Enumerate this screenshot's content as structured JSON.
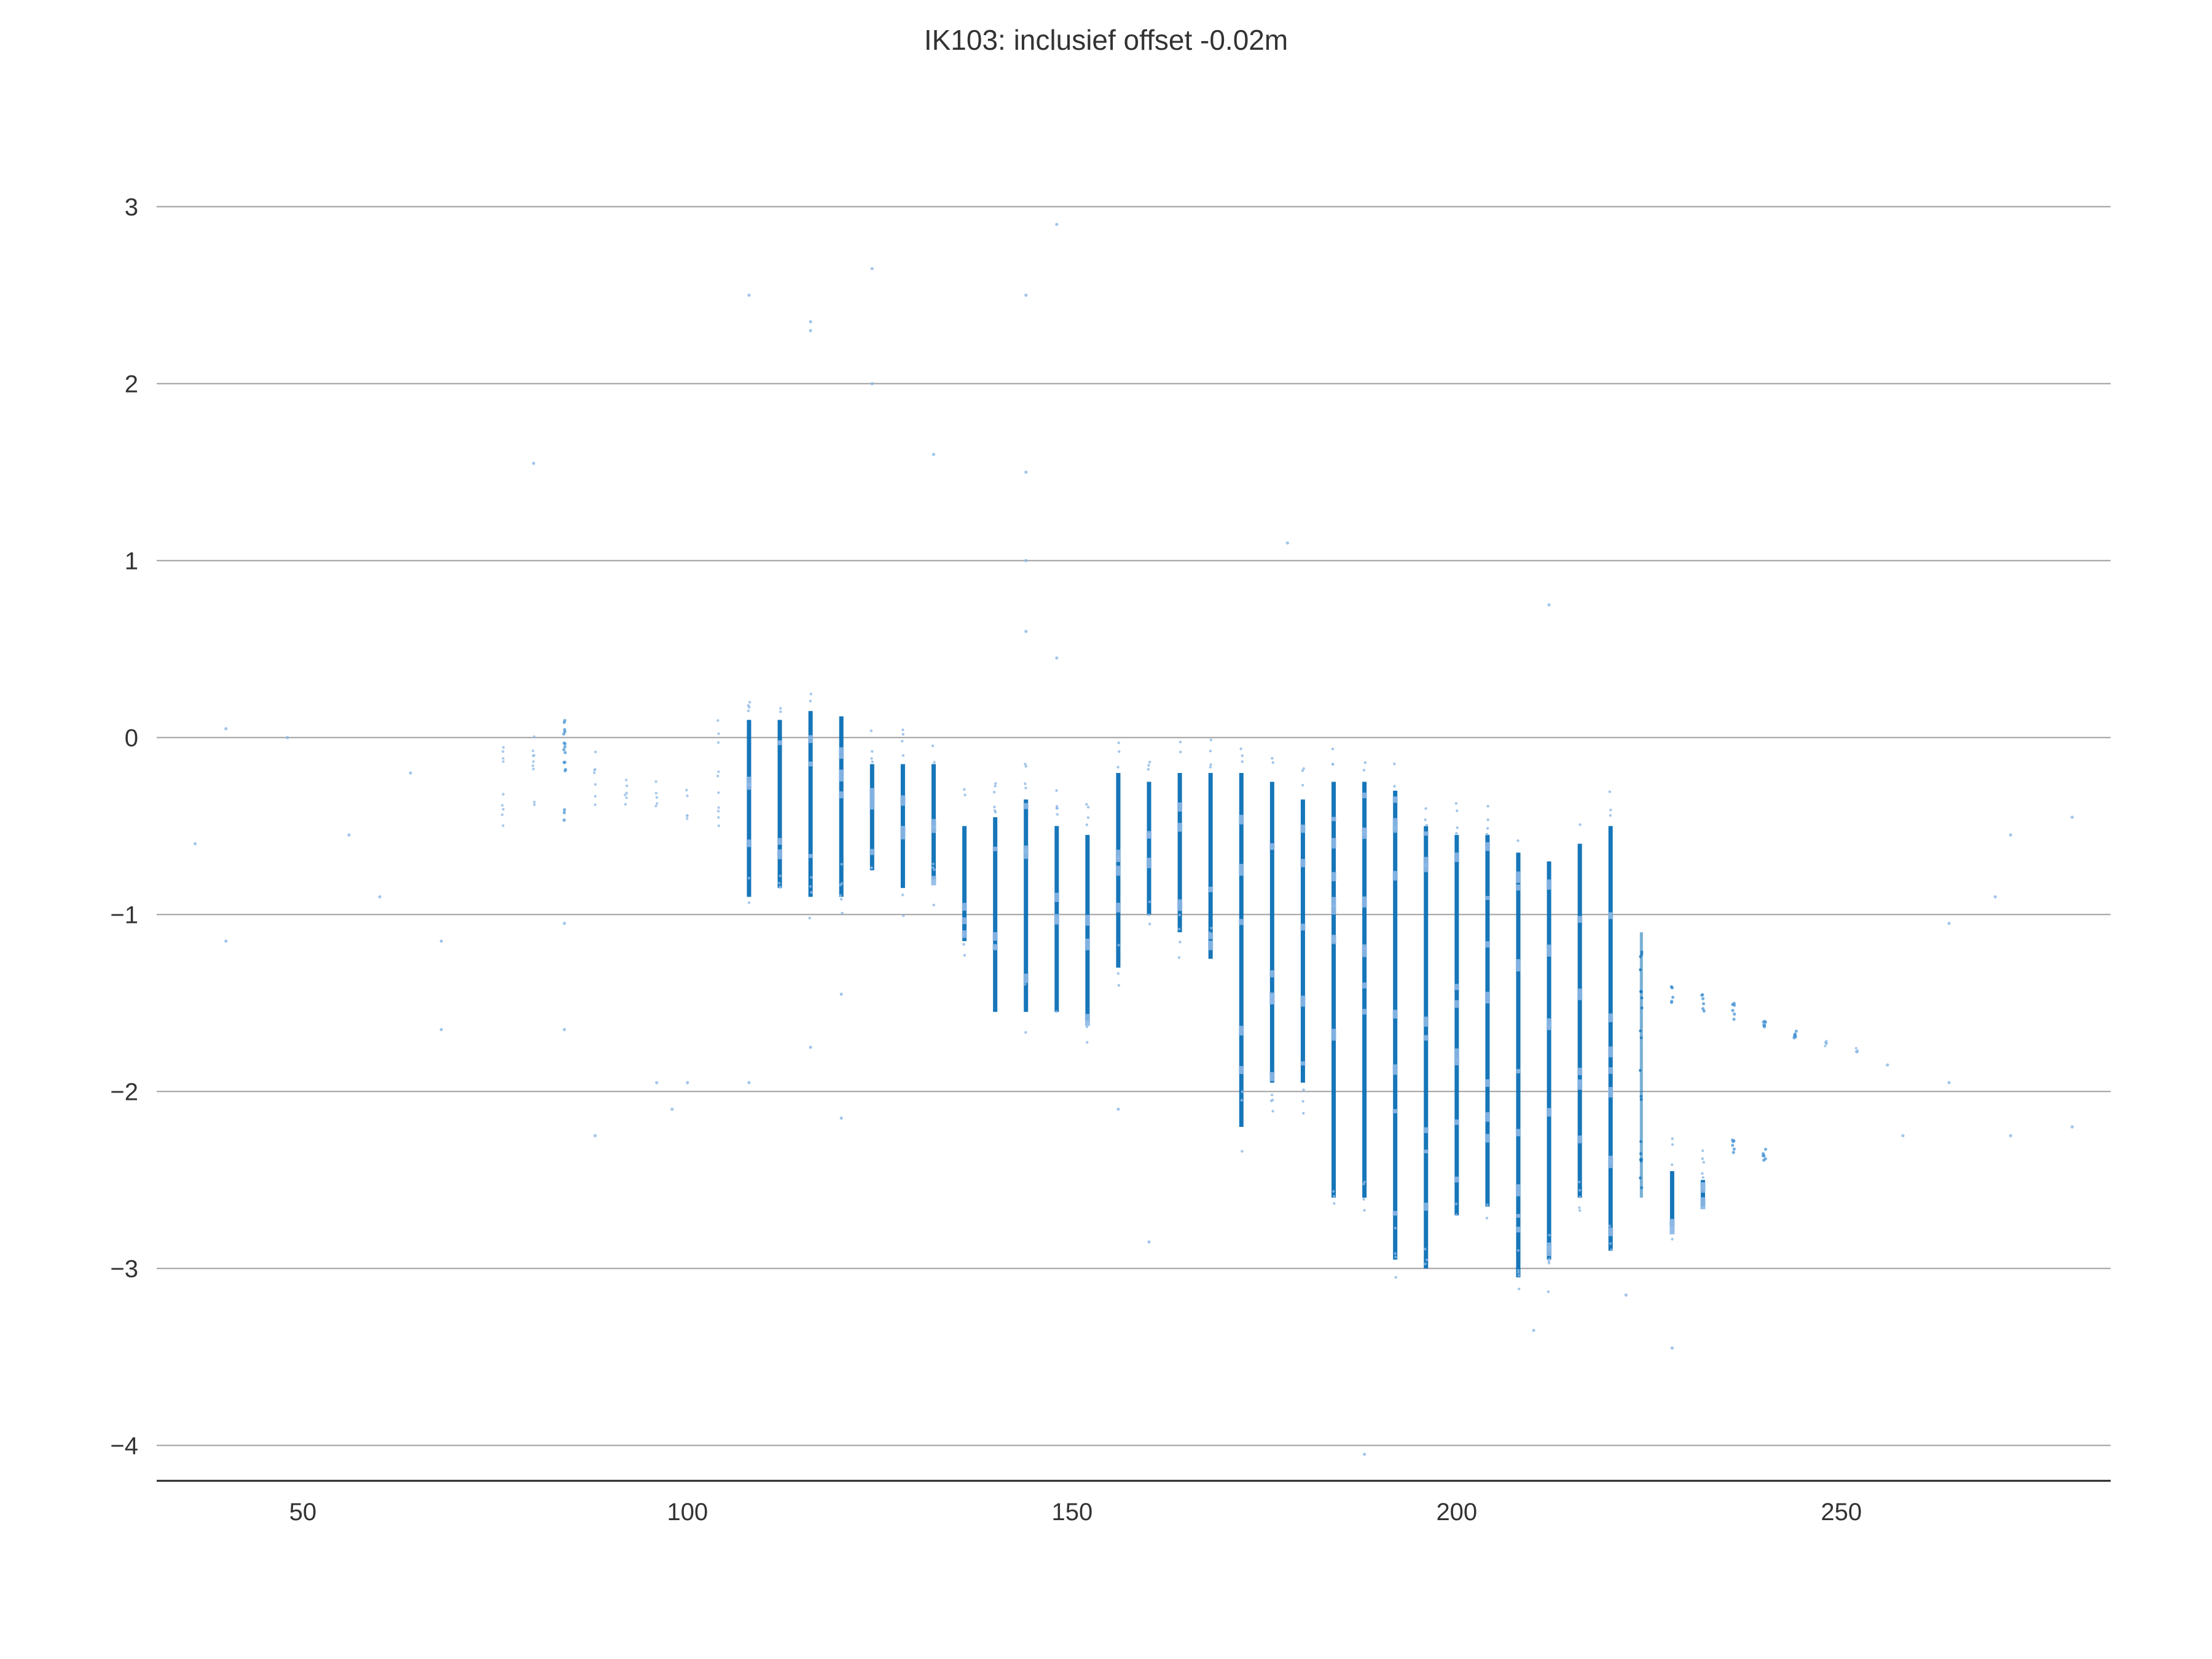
{
  "chart_data": {
    "type": "scatter",
    "title": "IK103: inclusief offset -0.02m",
    "xlabel": "",
    "ylabel": "",
    "xlim": [
      31,
      285
    ],
    "ylim": [
      -4.2,
      3.3
    ],
    "x_ticks": [
      50,
      100,
      150,
      200,
      250
    ],
    "y_ticks": [
      3,
      2,
      1,
      0,
      -1,
      -2,
      -3,
      -4
    ],
    "x_tick_labels": [
      "50",
      "100",
      "150",
      "200",
      "250"
    ],
    "y_tick_labels": [
      "3",
      "2",
      "1",
      "0",
      "−1",
      "−2",
      "−3",
      "−4"
    ],
    "grid": "horizontal",
    "point_color": "#1f77b4",
    "dense_color": "#0a6fb5",
    "light_color": "#8cb8e6",
    "columns": [
      {
        "x": 76,
        "ymin": -0.5,
        "ymax": 0.05,
        "density": "sparse"
      },
      {
        "x": 80,
        "ymin": -0.45,
        "ymax": 0.1,
        "density": "sparse"
      },
      {
        "x": 84,
        "ymin": -0.5,
        "ymax": 0.1,
        "density": "light"
      },
      {
        "x": 88,
        "ymin": -0.4,
        "ymax": 0.05,
        "density": "sparse"
      },
      {
        "x": 92,
        "ymin": -0.45,
        "ymax": -0.1,
        "density": "sparse"
      },
      {
        "x": 96,
        "ymin": -0.4,
        "ymax": -0.2,
        "density": "sparse"
      },
      {
        "x": 100,
        "ymin": -0.5,
        "ymax": -0.2,
        "density": "sparse"
      },
      {
        "x": 104,
        "ymin": -0.5,
        "ymax": 0.1,
        "density": "sparse"
      },
      {
        "x": 108,
        "ymin": -0.9,
        "ymax": 0.1,
        "density": "dense"
      },
      {
        "x": 112,
        "ymin": -0.85,
        "ymax": 0.1,
        "density": "dense"
      },
      {
        "x": 116,
        "ymin": -0.9,
        "ymax": 0.15,
        "density": "dense"
      },
      {
        "x": 120,
        "ymin": -0.9,
        "ymax": 0.12,
        "density": "dense"
      },
      {
        "x": 124,
        "ymin": -0.75,
        "ymax": -0.15,
        "density": "dense"
      },
      {
        "x": 128,
        "ymin": -0.85,
        "ymax": -0.15,
        "density": "dense"
      },
      {
        "x": 132,
        "ymin": -0.8,
        "ymax": -0.15,
        "density": "dense"
      },
      {
        "x": 136,
        "ymin": -1.15,
        "ymax": -0.5,
        "density": "dense"
      },
      {
        "x": 140,
        "ymin": -1.55,
        "ymax": -0.45,
        "density": "dense"
      },
      {
        "x": 144,
        "ymin": -1.55,
        "ymax": -0.35,
        "density": "dense"
      },
      {
        "x": 148,
        "ymin": -1.55,
        "ymax": -0.5,
        "density": "dense"
      },
      {
        "x": 152,
        "ymin": -1.6,
        "ymax": -0.55,
        "density": "dense"
      },
      {
        "x": 156,
        "ymin": -1.3,
        "ymax": -0.2,
        "density": "dense"
      },
      {
        "x": 160,
        "ymin": -1.0,
        "ymax": -0.25,
        "density": "dense"
      },
      {
        "x": 164,
        "ymin": -1.1,
        "ymax": -0.2,
        "density": "dense"
      },
      {
        "x": 168,
        "ymin": -1.25,
        "ymax": -0.2,
        "density": "dense"
      },
      {
        "x": 172,
        "ymin": -2.2,
        "ymax": -0.2,
        "density": "dense"
      },
      {
        "x": 176,
        "ymin": -1.95,
        "ymax": -0.25,
        "density": "dense"
      },
      {
        "x": 180,
        "ymin": -1.95,
        "ymax": -0.35,
        "density": "dense"
      },
      {
        "x": 184,
        "ymin": -2.6,
        "ymax": -0.25,
        "density": "dense"
      },
      {
        "x": 188,
        "ymin": -2.6,
        "ymax": -0.25,
        "density": "dense"
      },
      {
        "x": 192,
        "ymin": -2.95,
        "ymax": -0.3,
        "density": "dense"
      },
      {
        "x": 196,
        "ymin": -3.0,
        "ymax": -0.5,
        "density": "dense"
      },
      {
        "x": 200,
        "ymin": -2.7,
        "ymax": -0.55,
        "density": "dense"
      },
      {
        "x": 204,
        "ymin": -2.65,
        "ymax": -0.55,
        "density": "dense"
      },
      {
        "x": 208,
        "ymin": -3.05,
        "ymax": -0.65,
        "density": "dense"
      },
      {
        "x": 212,
        "ymin": -2.95,
        "ymax": -0.7,
        "density": "dense"
      },
      {
        "x": 216,
        "ymin": -2.6,
        "ymax": -0.6,
        "density": "dense"
      },
      {
        "x": 220,
        "ymin": -2.9,
        "ymax": -0.5,
        "density": "dense"
      },
      {
        "x": 224,
        "ymin": -2.6,
        "ymax": -1.1,
        "density": "medium"
      },
      {
        "x": 228,
        "ymin": -2.75,
        "ymax": -2.45,
        "density": "dense"
      },
      {
        "x": 232,
        "ymin": -2.65,
        "ymax": -2.5,
        "density": "dense"
      },
      {
        "x": 228,
        "ymin": -1.5,
        "ymax": -1.4,
        "density": "light"
      },
      {
        "x": 232,
        "ymin": -1.55,
        "ymax": -1.45,
        "density": "light"
      },
      {
        "x": 236,
        "ymin": -1.6,
        "ymax": -1.5,
        "density": "light"
      },
      {
        "x": 236,
        "ymin": -2.35,
        "ymax": -2.25,
        "density": "light"
      },
      {
        "x": 240,
        "ymin": -1.65,
        "ymax": -1.6,
        "density": "light"
      },
      {
        "x": 240,
        "ymin": -2.4,
        "ymax": -2.3,
        "density": "light"
      },
      {
        "x": 244,
        "ymin": -1.7,
        "ymax": -1.65,
        "density": "light"
      },
      {
        "x": 248,
        "ymin": -1.75,
        "ymax": -1.7,
        "density": "sparse"
      },
      {
        "x": 252,
        "ymin": -1.78,
        "ymax": -1.75,
        "density": "sparse"
      }
    ],
    "outliers": [
      [
        36,
        -0.6
      ],
      [
        40,
        -1.15
      ],
      [
        40,
        0.05
      ],
      [
        48,
        0.0
      ],
      [
        56,
        -0.55
      ],
      [
        60,
        -0.9
      ],
      [
        64,
        -0.2
      ],
      [
        68,
        -1.65
      ],
      [
        68,
        -1.15
      ],
      [
        80,
        1.55
      ],
      [
        84,
        -1.65
      ],
      [
        84,
        -1.05
      ],
      [
        88,
        -2.25
      ],
      [
        96,
        -1.95
      ],
      [
        100,
        -1.95
      ],
      [
        98,
        -2.1
      ],
      [
        108,
        2.5
      ],
      [
        108,
        -1.95
      ],
      [
        116,
        2.3
      ],
      [
        116,
        2.35
      ],
      [
        116,
        -1.75
      ],
      [
        120,
        -2.15
      ],
      [
        120,
        -1.45
      ],
      [
        124,
        2.65
      ],
      [
        124,
        2.0
      ],
      [
        132,
        1.6
      ],
      [
        144,
        2.5
      ],
      [
        144,
        1.5
      ],
      [
        144,
        1.0
      ],
      [
        144,
        0.6
      ],
      [
        148,
        2.9
      ],
      [
        148,
        0.45
      ],
      [
        156,
        -2.1
      ],
      [
        160,
        -2.85
      ],
      [
        178,
        1.1
      ],
      [
        212,
        0.75
      ],
      [
        210,
        -3.35
      ],
      [
        222,
        -3.15
      ],
      [
        228,
        -3.45
      ],
      [
        188,
        -4.05
      ],
      [
        264,
        -1.05
      ],
      [
        264,
        -1.95
      ],
      [
        270,
        -0.9
      ],
      [
        272,
        -0.55
      ],
      [
        272,
        -2.25
      ],
      [
        280,
        -0.45
      ],
      [
        280,
        -2.2
      ],
      [
        256,
        -1.85
      ],
      [
        258,
        -2.25
      ]
    ]
  }
}
